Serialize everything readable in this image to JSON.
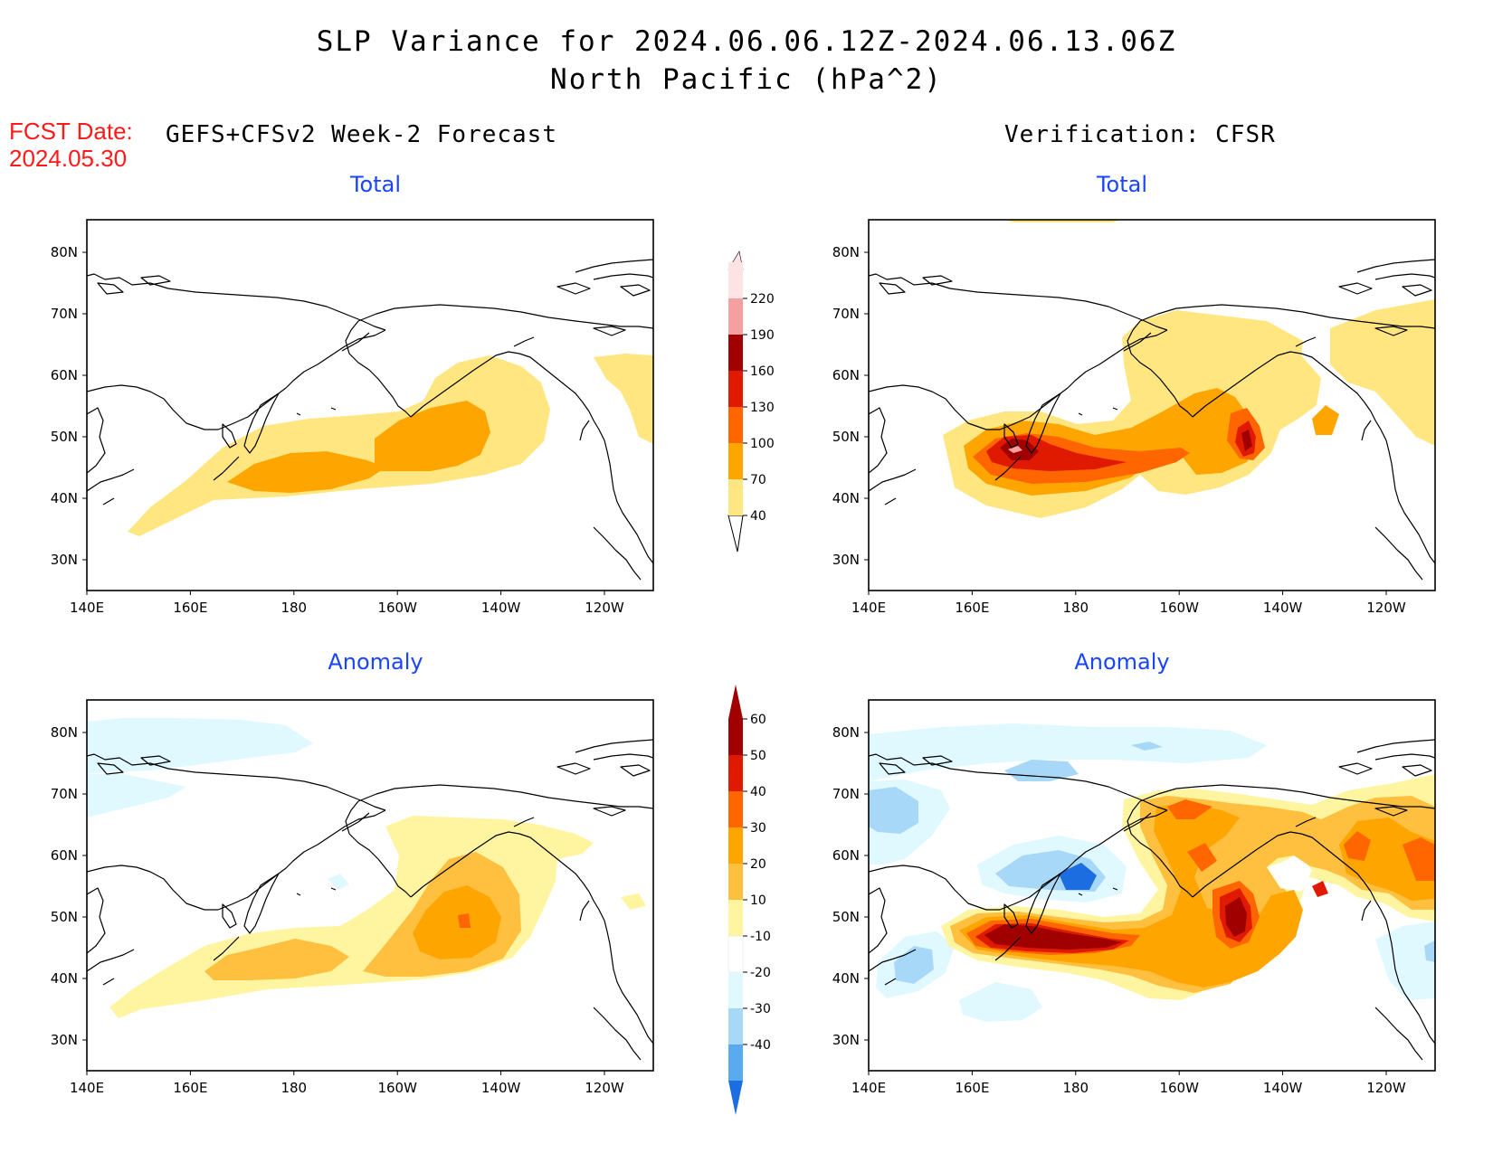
{
  "header": {
    "title_line1": "SLP Variance for 2024.06.06.12Z-2024.06.13.06Z",
    "title_line2": "North Pacific (hPa^2)"
  },
  "fcst_date": {
    "label": "FCST Date:",
    "value": "2024.05.30"
  },
  "columns": {
    "left_heading": "GEFS+CFSv2 Week-2 Forecast",
    "right_heading": "Verification: CFSR"
  },
  "panels": {
    "total_title": "Total",
    "anomaly_title": "Anomaly"
  },
  "axes": {
    "lon_ticks": [
      "140E",
      "160E",
      "180",
      "160W",
      "140W",
      "120W"
    ],
    "lat_ticks": [
      "80N",
      "70N",
      "60N",
      "50N",
      "40N",
      "30N"
    ]
  },
  "colorbar_total": {
    "levels": [
      "40",
      "70",
      "100",
      "130",
      "160",
      "190",
      "220"
    ],
    "colors": [
      "#ffe680",
      "#ffa500",
      "#ff6600",
      "#e01a00",
      "#a00000",
      "#f4a0a0",
      "#fde3e3"
    ]
  },
  "colorbar_anomaly": {
    "levels": [
      "60",
      "50",
      "40",
      "30",
      "20",
      "10",
      "-10",
      "-20",
      "-30",
      "-40"
    ],
    "colors_top_down": [
      "#a00000",
      "#e01a00",
      "#ff6600",
      "#ffa500",
      "#ffc040",
      "#fff5a0",
      "#ffffff",
      "#e0f8ff",
      "#a8d8f8",
      "#5aaaf0",
      "#1c6ee0"
    ]
  },
  "colors": {
    "fill_light_yellow": "#ffe680",
    "fill_orange": "#ffa500",
    "fill_dark_orange": "#ff6600",
    "fill_red": "#e01a00",
    "fill_dark_red": "#a00000",
    "title_blue": "#1a44ff",
    "fcst_red": "#ff1a1a"
  }
}
